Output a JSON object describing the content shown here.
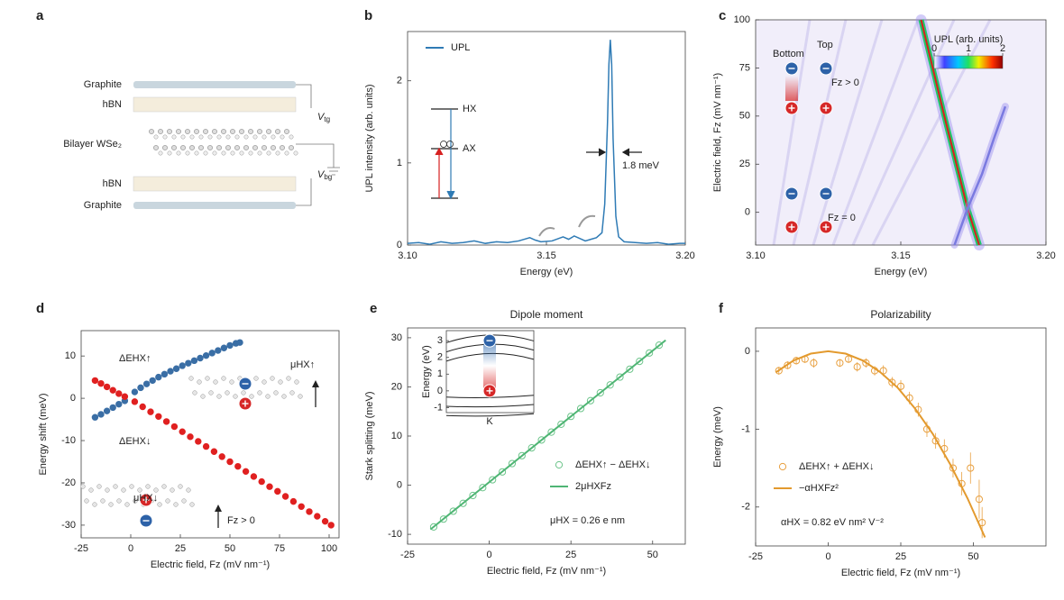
{
  "diagram": {
    "panel": "a",
    "layers": [
      "Graphite",
      "hBN",
      "Bilayer WSe₂",
      "hBN",
      "Graphite"
    ],
    "voltages": [
      {
        "symbol": "V",
        "subscript": "tg"
      },
      {
        "symbol": "V",
        "subscript": "bg"
      }
    ]
  },
  "chart_data": [
    {
      "type": "line",
      "panel": "b",
      "xlabel": "Energy (eV)",
      "ylabel": "UPL intensity (arb. units)",
      "xlim": [
        3.1,
        3.2
      ],
      "xticks": [
        {
          "value": 3.1,
          "label": "3.10"
        },
        3.15,
        {
          "value": 3.2,
          "label": "3.20"
        }
      ],
      "ylim": [
        0,
        2.6
      ],
      "yticks": [
        0,
        1,
        2
      ],
      "legend": "upper left",
      "annotations": [
        "HX",
        "AX",
        "1.8 meV"
      ],
      "series": [
        {
          "name": "UPL",
          "color": "#2f7bb5",
          "mark": "line",
          "x": [
            3.1,
            3.104,
            3.108,
            3.112,
            3.116,
            3.12,
            3.124,
            3.128,
            3.132,
            3.136,
            3.14,
            3.144,
            3.146,
            3.148,
            3.152,
            3.156,
            3.158,
            3.16,
            3.162,
            3.164,
            3.166,
            3.168,
            3.17,
            3.171,
            3.172,
            3.1725,
            3.173,
            3.1735,
            3.174,
            3.175,
            3.176,
            3.178,
            3.182,
            3.186,
            3.19,
            3.194,
            3.198,
            3.2
          ],
          "values": [
            0.02,
            0.03,
            0.01,
            0.04,
            0.02,
            0.03,
            0.05,
            0.02,
            0.04,
            0.03,
            0.05,
            0.09,
            0.06,
            0.04,
            0.05,
            0.1,
            0.07,
            0.11,
            0.08,
            0.05,
            0.07,
            0.09,
            0.15,
            0.5,
            1.5,
            2.2,
            2.5,
            2.2,
            1.3,
            0.35,
            0.1,
            0.04,
            0.03,
            0.02,
            0.03,
            0.01,
            0.02,
            0.02
          ]
        }
      ]
    },
    {
      "type": "heatmap-trace",
      "panel": "c",
      "xlabel": "Energy (eV)",
      "ylabel": "Electric field, Fz (mV nm⁻¹)",
      "xlim": [
        3.1,
        3.2
      ],
      "xticks": [
        {
          "value": 3.1,
          "label": "3.10"
        },
        3.15,
        {
          "value": 3.2,
          "label": "3.20"
        }
      ],
      "ylim": [
        -17,
        100
      ],
      "yticks": [
        0,
        25,
        50,
        75,
        100
      ],
      "annotations": [
        "Bottom",
        "Top",
        "Fz > 0",
        "Fz = 0"
      ],
      "colorbar": {
        "label": "UPL (arb. units)",
        "lim": [
          0,
          2
        ],
        "ticks": [
          0,
          1,
          2
        ]
      },
      "series": [
        {
          "color": "#d81e1e",
          "x": [
            3.177,
            3.173,
            3.165,
            3.157
          ],
          "values": [
            -17,
            2,
            50,
            100
          ]
        },
        {
          "color": "#7a7ae0",
          "x": [
            3.1685,
            3.173,
            3.178,
            3.182,
            3.186
          ],
          "values": [
            -17,
            2,
            20,
            38,
            55
          ]
        }
      ]
    },
    {
      "type": "scatter",
      "panel": "d",
      "xlabel": "Electric field, Fz (mV nm⁻¹)",
      "ylabel": "Energy shift (meV)",
      "xlim": [
        -25,
        105
      ],
      "xticks": [
        -25,
        0,
        25,
        50,
        75,
        100
      ],
      "ylim": [
        -33,
        16
      ],
      "yticks": [
        10,
        0,
        -10,
        -20,
        -30
      ],
      "legend": "inline",
      "annotations": [
        "μHX↑",
        "μHX↓",
        "Fz > 0"
      ],
      "series": [
        {
          "name": "ΔEHX↑",
          "color": "#3a6ea5",
          "mark": "dot",
          "x": [
            -18,
            -15,
            -12,
            -9,
            -6,
            -3,
            2,
            5,
            8,
            11,
            14,
            17,
            20,
            23,
            26,
            29,
            32,
            35,
            38,
            41,
            44,
            47,
            50,
            53,
            55
          ],
          "values": [
            -4.5,
            -3.8,
            -3.0,
            -2.2,
            -1.4,
            -0.6,
            1.5,
            2.5,
            3.4,
            4.2,
            5.0,
            5.7,
            6.4,
            7.0,
            7.7,
            8.3,
            8.9,
            9.5,
            10.1,
            10.7,
            11.3,
            11.9,
            12.5,
            13.0,
            13.2
          ]
        },
        {
          "name": "ΔEHX↓",
          "color": "#e02020",
          "mark": "dot",
          "x": [
            -18,
            -15,
            -12,
            -9,
            -6,
            -3,
            2,
            6,
            10,
            14,
            18,
            22,
            26,
            30,
            34,
            38,
            42,
            46,
            50,
            54,
            58,
            62,
            66,
            70,
            74,
            78,
            82,
            86,
            90,
            94,
            98,
            101
          ],
          "values": [
            4.2,
            3.5,
            2.7,
            1.9,
            1.1,
            0.4,
            -0.8,
            -2.0,
            -3.2,
            -4.3,
            -5.5,
            -6.7,
            -7.9,
            -9.1,
            -10.2,
            -11.4,
            -12.6,
            -13.8,
            -15.0,
            -16.1,
            -17.3,
            -18.5,
            -19.7,
            -20.9,
            -22.0,
            -23.2,
            -24.4,
            -25.6,
            -26.8,
            -27.9,
            -29.1,
            -30.0
          ]
        }
      ]
    },
    {
      "type": "scatter",
      "panel": "e",
      "title": "Dipole moment",
      "xlabel": "Electric field, Fz (mV nm⁻¹)",
      "ylabel": "Stark splitting (meV)",
      "xlim": [
        -25,
        60
      ],
      "xticks": [
        -25,
        0,
        25,
        50
      ],
      "ylim": [
        -12,
        32
      ],
      "yticks": [
        -10,
        0,
        10,
        20,
        30
      ],
      "legend": "lower right",
      "annotations": [
        "μHX = 0.26 e nm"
      ],
      "inset": {
        "ylabel": "Energy (eV)",
        "ylim": [
          -1.3,
          3.6
        ],
        "yticks": [
          3,
          2,
          1,
          0,
          -1
        ],
        "xlabel": "K"
      },
      "series": [
        {
          "name": "ΔEHX↑ − ΔEHX↓",
          "color": "#6cc48a",
          "mark": "open",
          "x": [
            -17,
            -14,
            -11,
            -8,
            -5,
            -2,
            1,
            4,
            7,
            10,
            13,
            16,
            19,
            22,
            25,
            28,
            31,
            34,
            37,
            40,
            43,
            46,
            49,
            52
          ],
          "values": [
            -8.5,
            -6.9,
            -5.3,
            -3.7,
            -2.1,
            -0.5,
            1.1,
            2.7,
            4.4,
            6.0,
            7.6,
            9.2,
            10.8,
            12.4,
            14.0,
            15.6,
            17.2,
            18.8,
            20.4,
            22.0,
            23.6,
            25.2,
            26.9,
            28.5
          ]
        },
        {
          "name": "2μHXFz",
          "color": "#4fb574",
          "mark": "line",
          "x": [
            -18,
            54
          ],
          "values": [
            -9.0,
            29.5
          ]
        }
      ]
    },
    {
      "type": "scatter",
      "panel": "f",
      "title": "Polarizability",
      "xlabel": "Electric field, Fz (mV nm⁻¹)",
      "ylabel": "Energy (meV)",
      "xlim": [
        -25,
        75
      ],
      "xticks": [
        -25,
        0,
        25,
        50
      ],
      "ylim": [
        -2.5,
        0.3
      ],
      "yticks": [
        0,
        -1,
        -2
      ],
      "legend": "lower left",
      "annotations": [
        "αHX = 0.82 eV nm² V⁻²"
      ],
      "series": [
        {
          "name": "ΔEHX↑ + ΔEHX↓",
          "color": "#e8a040",
          "mark": "open",
          "x": [
            -17,
            -14,
            -11,
            -8,
            -5,
            4,
            7,
            10,
            13,
            16,
            19,
            22,
            25,
            28,
            31,
            34,
            37,
            40,
            43,
            46,
            49,
            52,
            53
          ],
          "values": [
            -0.25,
            -0.18,
            -0.12,
            -0.1,
            -0.15,
            -0.15,
            -0.1,
            -0.2,
            -0.15,
            -0.25,
            -0.25,
            -0.4,
            -0.45,
            -0.6,
            -0.75,
            -1.0,
            -1.15,
            -1.25,
            -1.5,
            -1.7,
            -1.5,
            -1.9,
            -2.2
          ],
          "errors": [
            0.05,
            0.05,
            0.05,
            0.05,
            0.06,
            0.05,
            0.05,
            0.06,
            0.06,
            0.06,
            0.07,
            0.07,
            0.08,
            0.08,
            0.09,
            0.1,
            0.1,
            0.12,
            0.12,
            0.15,
            0.2,
            0.25,
            0.2
          ]
        },
        {
          "name": "−αHXFz²",
          "color": "#e39a2e",
          "mark": "line",
          "x": [
            -18,
            -12,
            -6,
            0,
            6,
            12,
            18,
            24,
            30,
            36,
            42,
            48,
            54
          ],
          "values": [
            -0.27,
            -0.12,
            -0.03,
            0,
            -0.03,
            -0.12,
            -0.27,
            -0.47,
            -0.74,
            -1.06,
            -1.45,
            -1.89,
            -2.39
          ]
        }
      ]
    }
  ]
}
